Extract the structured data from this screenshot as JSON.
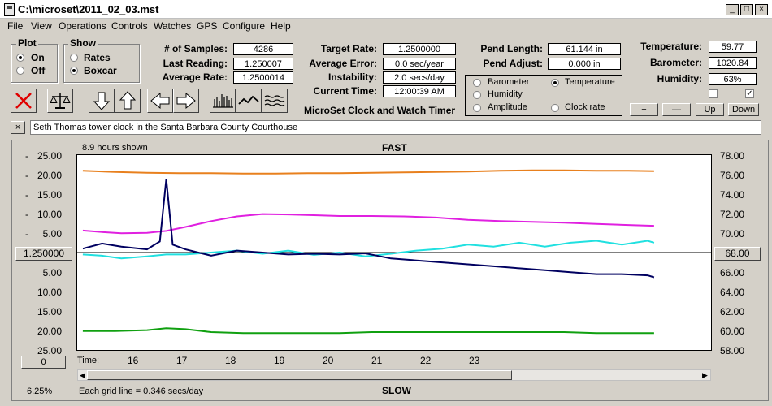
{
  "window": {
    "title": "C:\\microset\\2011_02_03.mst",
    "min": "_",
    "max": "□",
    "close": "×"
  },
  "menu": [
    "File",
    "View",
    "Operations",
    "Controls",
    "Watches",
    "GPS",
    "Configure",
    "Help"
  ],
  "plot_group": {
    "title": "Plot",
    "on": "On",
    "off": "Off",
    "selected": "On"
  },
  "show_group": {
    "title": "Show",
    "rates": "Rates",
    "boxcar": "Boxcar",
    "selected": "Boxcar"
  },
  "stats": {
    "samples_label": "# of Samples:",
    "samples": "4286",
    "last_label": "Last Reading:",
    "last": "1.250007",
    "avg_label": "Average Rate:",
    "avg": "1.2500014"
  },
  "rates": {
    "target_label": "Target Rate:",
    "target": "1.2500000",
    "err_label": "Average Error:",
    "err": "0.0 sec/year",
    "instab_label": "Instability:",
    "instab": "2.0 secs/day",
    "time_label": "Current Time:",
    "time": "12:00:39 AM"
  },
  "pend": {
    "length_label": "Pend Length:",
    "length": "61.144 in",
    "adjust_label": "Pend Adjust:",
    "adjust": "0.000 in"
  },
  "env": {
    "temp_label": "Temperature:",
    "temp": "59.77",
    "baro_label": "Barometer:",
    "baro": "1020.84",
    "hum_label": "Humidity:",
    "hum": "63%",
    "cb2": "✓"
  },
  "series_select": {
    "barometer": "Barometer",
    "temperature": "Temperature",
    "humidity": "Humidity",
    "amplitude": "Amplitude",
    "clockrate": "Clock rate",
    "selected": "Temperature"
  },
  "app_name": "MicroSet Clock and Watch Timer",
  "scale_buttons": {
    "plus": "+",
    "minus": "—",
    "up": "Up",
    "down": "Down"
  },
  "description": {
    "close": "×",
    "text": "Seth Thomas tower clock in the Santa Barbara County Courthouse"
  },
  "colors": {
    "barometer": "#e8801e",
    "temperature": "#10a010",
    "humidity": "#e020e0",
    "amplitude": "#20e0e0",
    "rate": "#000060"
  },
  "plot": {
    "hours_shown": "8.9 hours shown",
    "fast": "FAST",
    "slow": "SLOW",
    "left_ticks_top": [
      "25.00",
      "20.00",
      "15.00",
      "10.00",
      "5.00"
    ],
    "left_ticks_bottom": [
      "5.00",
      "10.00",
      "15.00",
      "20.00",
      "25.00"
    ],
    "center_value": "1.250000",
    "right_ticks_top": [
      "78.00",
      "76.00",
      "74.00",
      "72.00",
      "70.00"
    ],
    "right_center": "68.00",
    "right_ticks_bottom": [
      "66.00",
      "64.00",
      "62.00",
      "60.00",
      "58.00"
    ],
    "time_label": "Time:",
    "x_labels": [
      "16",
      "17",
      "18",
      "19",
      "20",
      "21",
      "22",
      "23"
    ],
    "offset_button": "0",
    "zoom": "6.25%",
    "grid_note": "Each grid line = 0.346 secs/day"
  },
  "chart_data": {
    "type": "line",
    "x_unit": "hour",
    "left_axis_unit": "secs/day",
    "right_axis_unit": "temperature",
    "xlim": [
      14.9,
      24.8
    ],
    "ylim_left": [
      -25,
      25
    ],
    "ylim_right": [
      58,
      78
    ],
    "series": [
      {
        "name": "Barometer",
        "axis": "left",
        "x": [
          15.0,
          15.5,
          16.0,
          16.5,
          17.0,
          17.5,
          18.0,
          18.5,
          19.0,
          19.5,
          20.0,
          20.5,
          21.0,
          21.5,
          22.0,
          22.5,
          23.0,
          23.5,
          23.9
        ],
        "y": [
          20.8,
          20.5,
          20.3,
          20.2,
          20.2,
          20.1,
          20.1,
          20.2,
          20.2,
          20.3,
          20.4,
          20.5,
          20.6,
          20.8,
          20.9,
          20.9,
          20.8,
          20.8,
          20.7
        ]
      },
      {
        "name": "Temperature",
        "axis": "right",
        "x": [
          15.0,
          15.5,
          16.0,
          16.3,
          16.6,
          17.0,
          17.5,
          18.0,
          18.5,
          19.0,
          19.5,
          20.0,
          20.5,
          21.0,
          21.5,
          22.0,
          22.5,
          23.0,
          23.5,
          23.9
        ],
        "y": [
          60.0,
          60.0,
          60.1,
          60.3,
          60.2,
          59.9,
          59.8,
          59.8,
          59.8,
          59.8,
          59.9,
          59.9,
          59.9,
          59.9,
          59.9,
          59.9,
          59.9,
          59.8,
          59.8,
          59.8
        ]
      },
      {
        "name": "Humidity",
        "axis": "left",
        "x": [
          15.0,
          15.3,
          15.6,
          16.0,
          16.3,
          16.6,
          17.0,
          17.4,
          17.8,
          18.2,
          18.6,
          19.0,
          19.5,
          20.0,
          20.5,
          21.0,
          21.5,
          22.0,
          22.5,
          23.0,
          23.5,
          23.9
        ],
        "y": [
          5.6,
          5.2,
          4.9,
          5.0,
          5.5,
          6.5,
          8.0,
          9.2,
          9.8,
          9.7,
          9.5,
          9.3,
          9.3,
          9.2,
          8.9,
          8.3,
          8.0,
          7.8,
          7.6,
          7.3,
          7.0,
          6.8
        ]
      },
      {
        "name": "Amplitude",
        "axis": "left",
        "x": [
          15.0,
          15.3,
          15.6,
          16.0,
          16.3,
          16.6,
          17.0,
          17.4,
          17.8,
          18.2,
          18.6,
          19.0,
          19.4,
          19.8,
          20.2,
          20.6,
          21.0,
          21.4,
          21.8,
          22.2,
          22.6,
          23.0,
          23.4,
          23.8,
          23.9
        ],
        "y": [
          -0.5,
          -0.8,
          -1.5,
          -1.0,
          -0.5,
          -0.5,
          0.0,
          0.5,
          -0.3,
          0.5,
          -0.6,
          0.0,
          -1.0,
          -0.3,
          0.5,
          1.0,
          2.0,
          1.5,
          2.5,
          1.5,
          2.5,
          3.0,
          2.0,
          3.0,
          2.5
        ]
      },
      {
        "name": "Clock rate",
        "axis": "left",
        "x": [
          15.0,
          15.3,
          15.6,
          16.0,
          16.2,
          16.3,
          16.4,
          16.6,
          17.0,
          17.4,
          17.8,
          18.2,
          18.6,
          19.0,
          19.4,
          19.8,
          20.2,
          20.6,
          21.0,
          21.4,
          21.8,
          22.2,
          22.6,
          23.0,
          23.4,
          23.8,
          23.9
        ],
        "y": [
          1.0,
          2.3,
          1.5,
          0.8,
          2.8,
          18.7,
          2.0,
          0.8,
          -0.8,
          0.5,
          0.0,
          -0.5,
          -0.3,
          -0.5,
          -0.2,
          -1.5,
          -2.0,
          -2.5,
          -3.0,
          -3.5,
          -4.0,
          -4.5,
          -5.0,
          -5.5,
          -5.5,
          -5.8,
          -6.3
        ]
      }
    ]
  }
}
